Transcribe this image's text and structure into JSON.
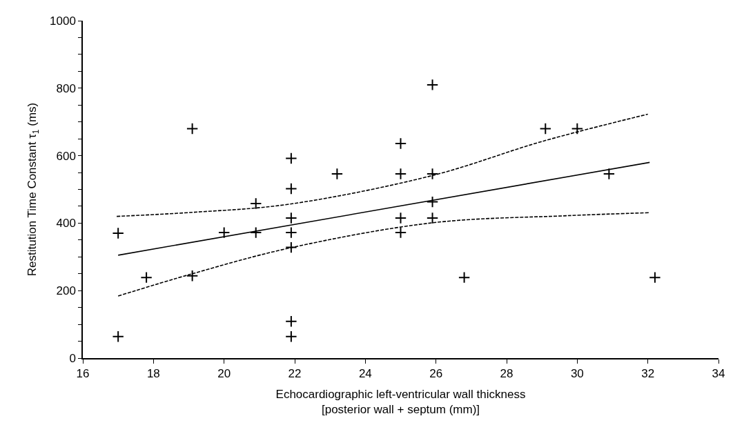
{
  "chart_data": {
    "type": "scatter",
    "xlabel": "Echocardiographic left-ventricular wall thickness\n[posterior wall + septum (mm)]",
    "ylabel": "Restitution Time Constant τ$_{1}$ (ms)",
    "xlim": [
      16,
      34
    ],
    "xticks": [
      16,
      18,
      20,
      22,
      24,
      26,
      28,
      30,
      32,
      34
    ],
    "ylim": [
      0,
      1000
    ],
    "yticks": [
      0,
      {
        "value": 50,
        "label": null
      },
      {
        "value": 100,
        "label": null
      },
      {
        "value": 150,
        "label": null
      },
      200,
      {
        "value": 250,
        "label": null
      },
      {
        "value": 300,
        "label": null
      },
      {
        "value": 350,
        "label": null
      },
      400,
      {
        "value": 450,
        "label": null
      },
      {
        "value": 500,
        "label": null
      },
      {
        "value": 550,
        "label": null
      },
      600,
      {
        "value": 650,
        "label": null
      },
      {
        "value": 700,
        "label": null
      },
      {
        "value": 750,
        "label": null
      },
      800,
      {
        "value": 850,
        "label": null
      },
      {
        "value": 900,
        "label": null
      },
      {
        "value": 950,
        "label": null
      },
      1000
    ],
    "series": [
      {
        "color": "#000000",
        "marker": "cross",
        "x": [
          17.0,
          17.0,
          17.8,
          19.1,
          19.1,
          20.0,
          20.9,
          20.9,
          21.9,
          21.9,
          21.9,
          21.9,
          21.9,
          21.9,
          21.9,
          23.2,
          25.0,
          25.0,
          25.0,
          25.0,
          25.9,
          25.9,
          25.9,
          25.9,
          26.8,
          29.1,
          30.0,
          30.9,
          32.2
        ],
        "values": [
          370,
          64,
          239,
          680,
          244,
          372,
          458,
          372,
          592,
          502,
          415,
          372,
          328,
          109,
          64,
          546,
          636,
          546,
          415,
          372,
          810,
          546,
          463,
          415,
          239,
          680,
          680,
          546,
          239
        ]
      },
      {
        "type": "line",
        "color": "#000000",
        "line_style": "solid",
        "marker": "none",
        "x": [
          17.0,
          32.05
        ],
        "values": [
          305,
          580
        ]
      },
      {
        "type": "line",
        "color": "#000000",
        "line_style": "dashed",
        "marker": "none",
        "x": [
          16.96,
          19.1,
          21.83,
          25.93,
          29.0,
          32.0
        ],
        "values": [
          420,
          432,
          456,
          542,
          642,
          723
        ]
      },
      {
        "type": "line",
        "color": "#000000",
        "line_style": "dashed",
        "marker": "none",
        "x": [
          17.0,
          19.1,
          21.8,
          25.9,
          29.7,
          32.05
        ],
        "values": [
          184,
          250,
          325,
          401,
          422,
          431
        ]
      }
    ]
  }
}
